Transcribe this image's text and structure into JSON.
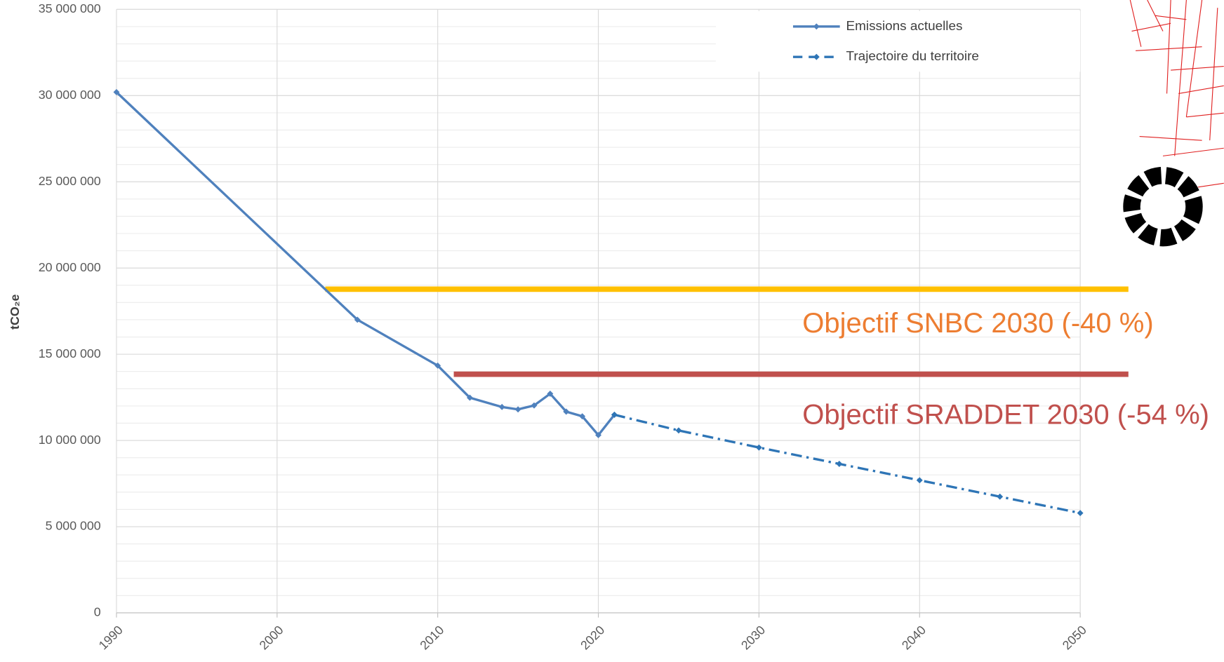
{
  "chart_data": {
    "type": "line",
    "y_label": "tCO₂e",
    "xlim": [
      1990,
      2050
    ],
    "xticks": [
      1990,
      2000,
      2010,
      2020,
      2030,
      2040,
      2050
    ],
    "ylim": [
      0,
      35000000
    ],
    "yticks": [
      {
        "value": 0,
        "label": "0"
      },
      {
        "value": 5000000,
        "label": "5 000 000"
      },
      {
        "value": 10000000,
        "label": "10 000 000"
      },
      {
        "value": 15000000,
        "label": "15 000 000"
      },
      {
        "value": 20000000,
        "label": "20 000 000"
      },
      {
        "value": 25000000,
        "label": "25 000 000"
      },
      {
        "value": 30000000,
        "label": "30 000 000"
      },
      {
        "value": 35000000,
        "label": "35 000 000"
      }
    ],
    "yminor": 1000000,
    "grid": true,
    "legend": "top-right",
    "series": [
      {
        "name": "Emissions actuelles",
        "color": "#4f81bd",
        "style": "solid",
        "x": [
          1990,
          2005,
          2010,
          2012,
          2014,
          2015,
          2016,
          2017,
          2018,
          2019,
          2020,
          2021
        ],
        "values": [
          30200000,
          17000000,
          14340000,
          12480000,
          11940000,
          11800000,
          12030000,
          12710000,
          11670000,
          11400000,
          10310000,
          11490000
        ]
      },
      {
        "name": "Trajectoire du territoire",
        "color": "#2e75b6",
        "style": "dashdot",
        "x": [
          2021,
          2025,
          2030,
          2035,
          2040,
          2045,
          2050
        ],
        "values": [
          11490000,
          10580000,
          9590000,
          8640000,
          7690000,
          6740000,
          5790000
        ]
      }
    ],
    "annotations": [
      {
        "text": "Objectif SNBC 2030 (-40 %)",
        "value": 18770000,
        "x": [
          2003,
          2053
        ],
        "color": "#ffc000",
        "text_color": "#ed7d31"
      },
      {
        "text": "Objectif SRADDET 2030 (-54 %)",
        "value": 13840000,
        "x": [
          2011,
          2053
        ],
        "color": "#c0504d",
        "text_color": "#c0504d"
      }
    ]
  }
}
